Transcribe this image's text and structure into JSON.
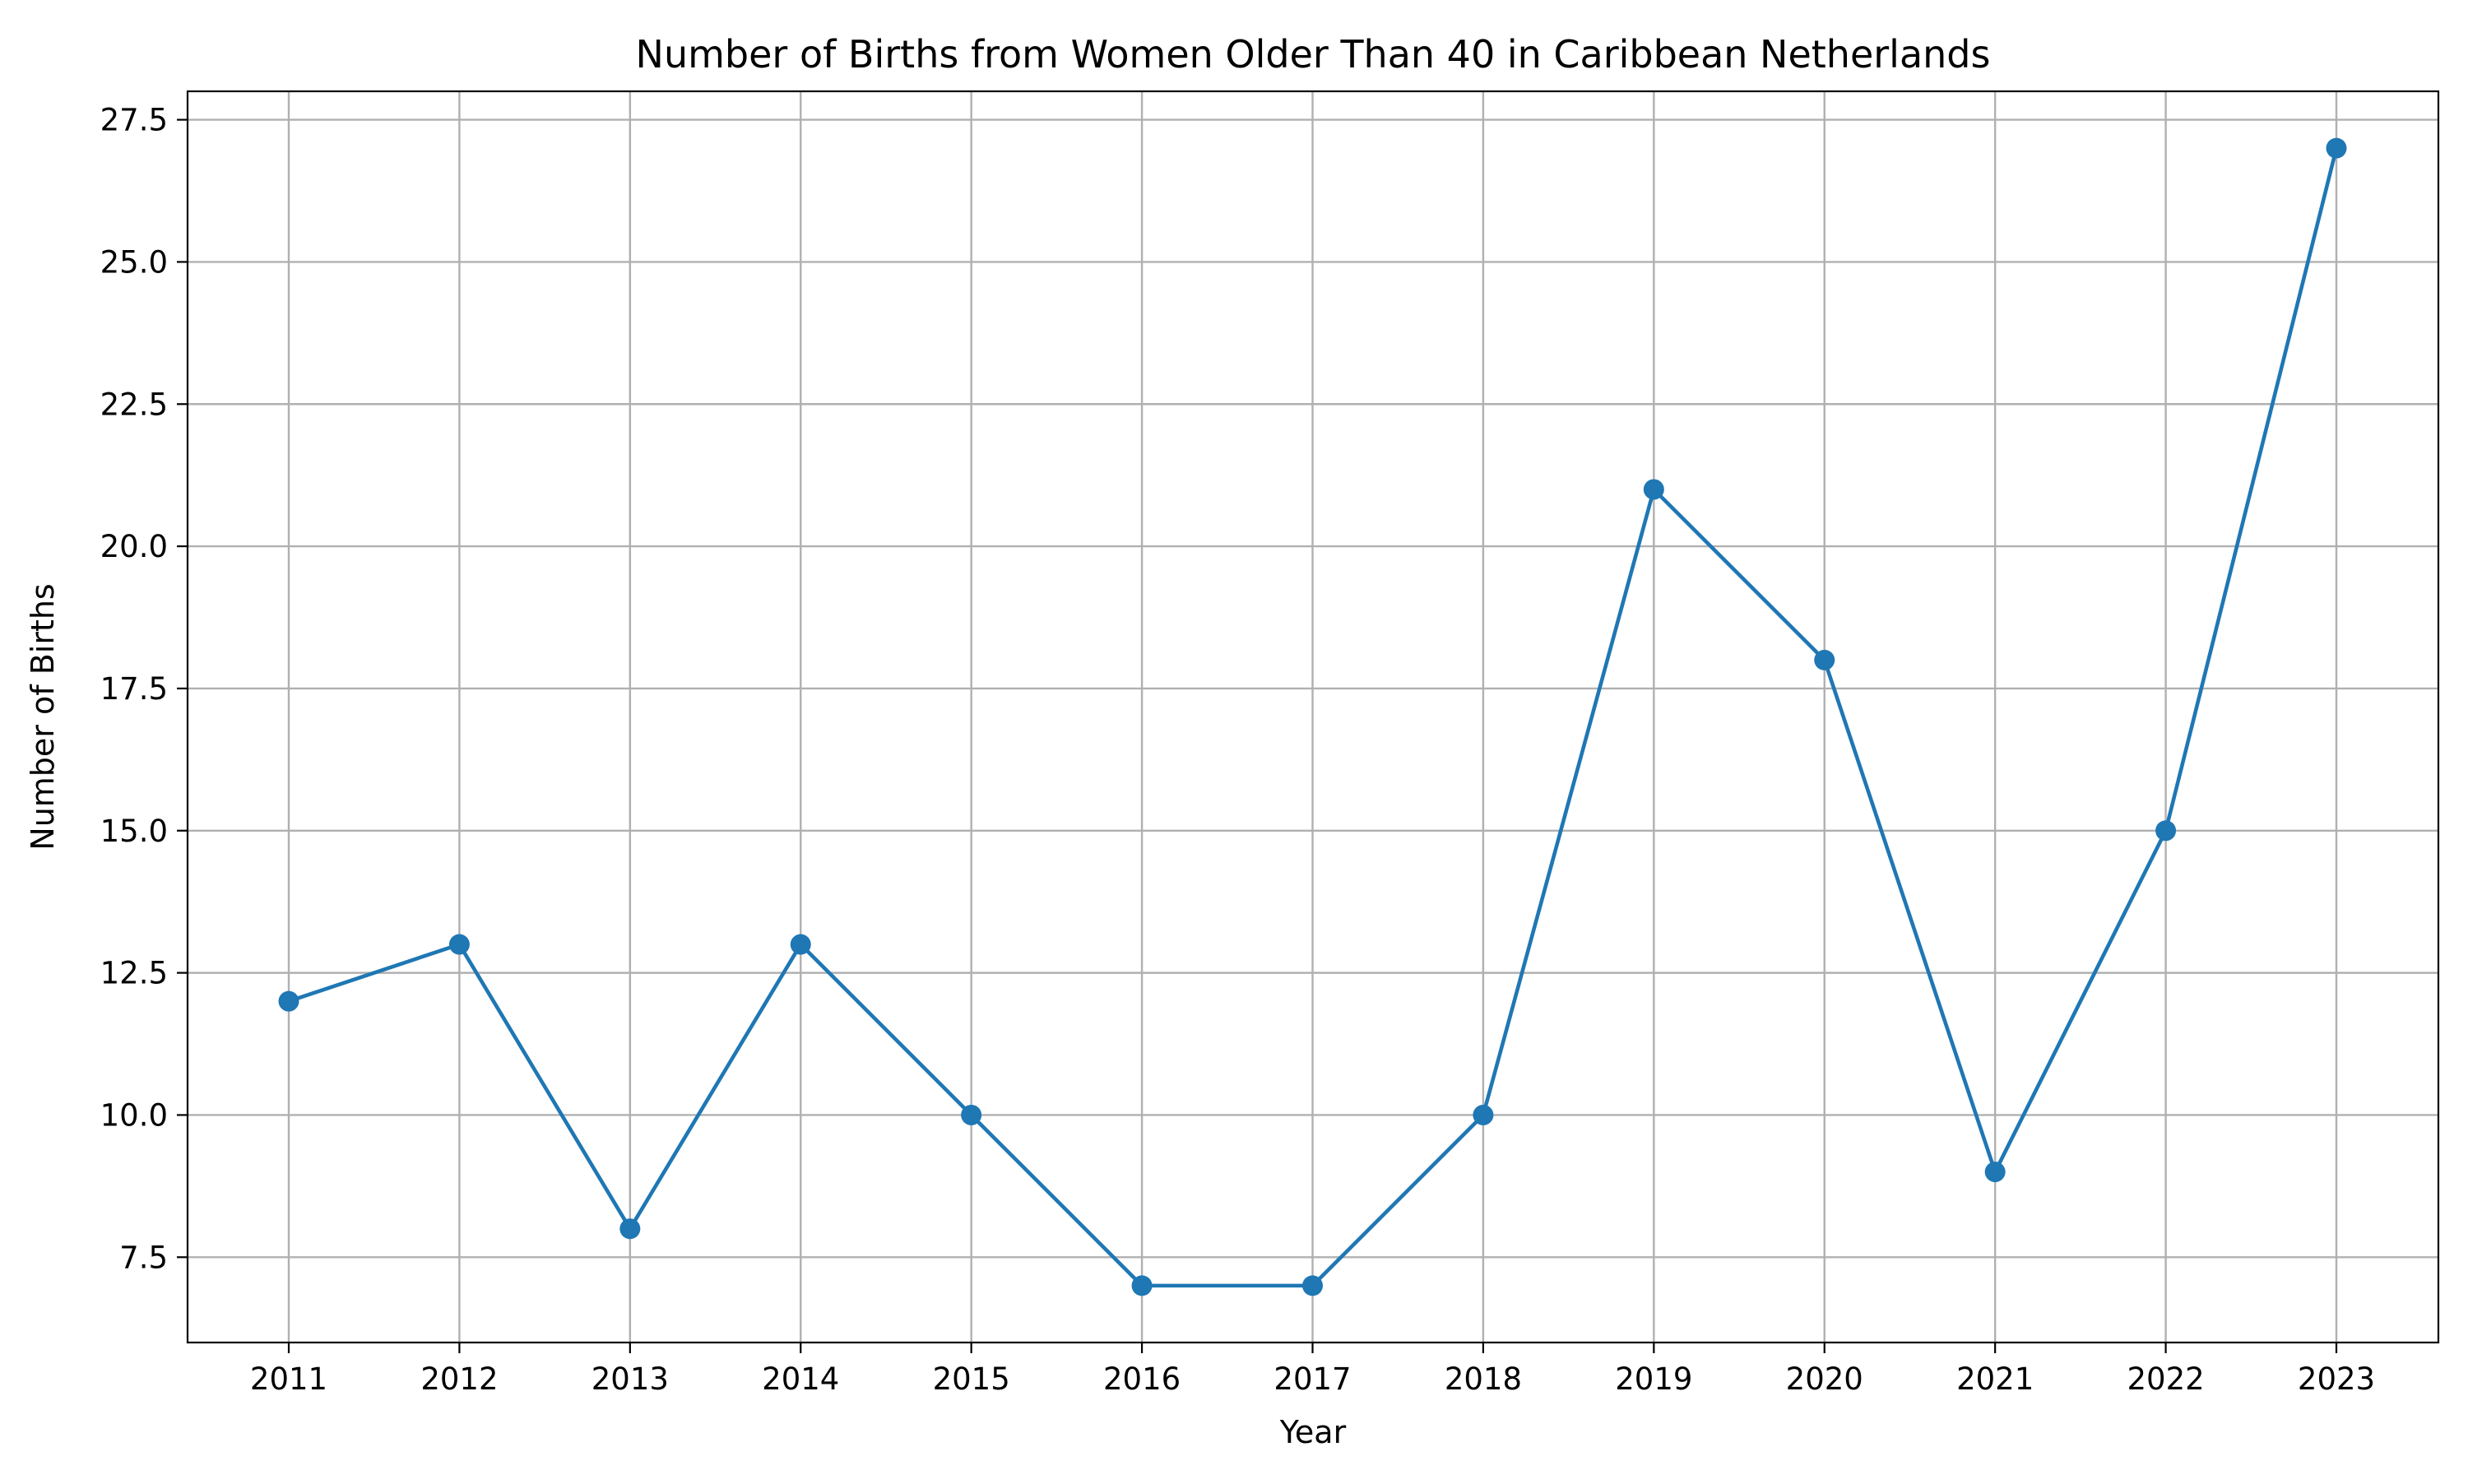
{
  "chart_data": {
    "type": "line",
    "title": "Number of Births from Women Older Than 40 in Caribbean Netherlands",
    "xlabel": "Year",
    "ylabel": "Number of Births",
    "categories": [
      "2011",
      "2012",
      "2013",
      "2014",
      "2015",
      "2016",
      "2017",
      "2018",
      "2019",
      "2020",
      "2021",
      "2022",
      "2023"
    ],
    "series": [
      {
        "values": [
          12,
          13,
          8,
          13,
          10,
          7,
          7,
          10,
          21,
          18,
          9,
          15,
          27
        ]
      }
    ],
    "y_ticks": [
      "7.5",
      "10.0",
      "12.5",
      "15.0",
      "17.5",
      "20.0",
      "22.5",
      "25.0",
      "27.5"
    ],
    "ylim": [
      6,
      28
    ],
    "grid": true,
    "legend": "none",
    "colors": {
      "line": "#1f77b4",
      "grid": "#b0b0b0",
      "axes": "#000000"
    }
  }
}
